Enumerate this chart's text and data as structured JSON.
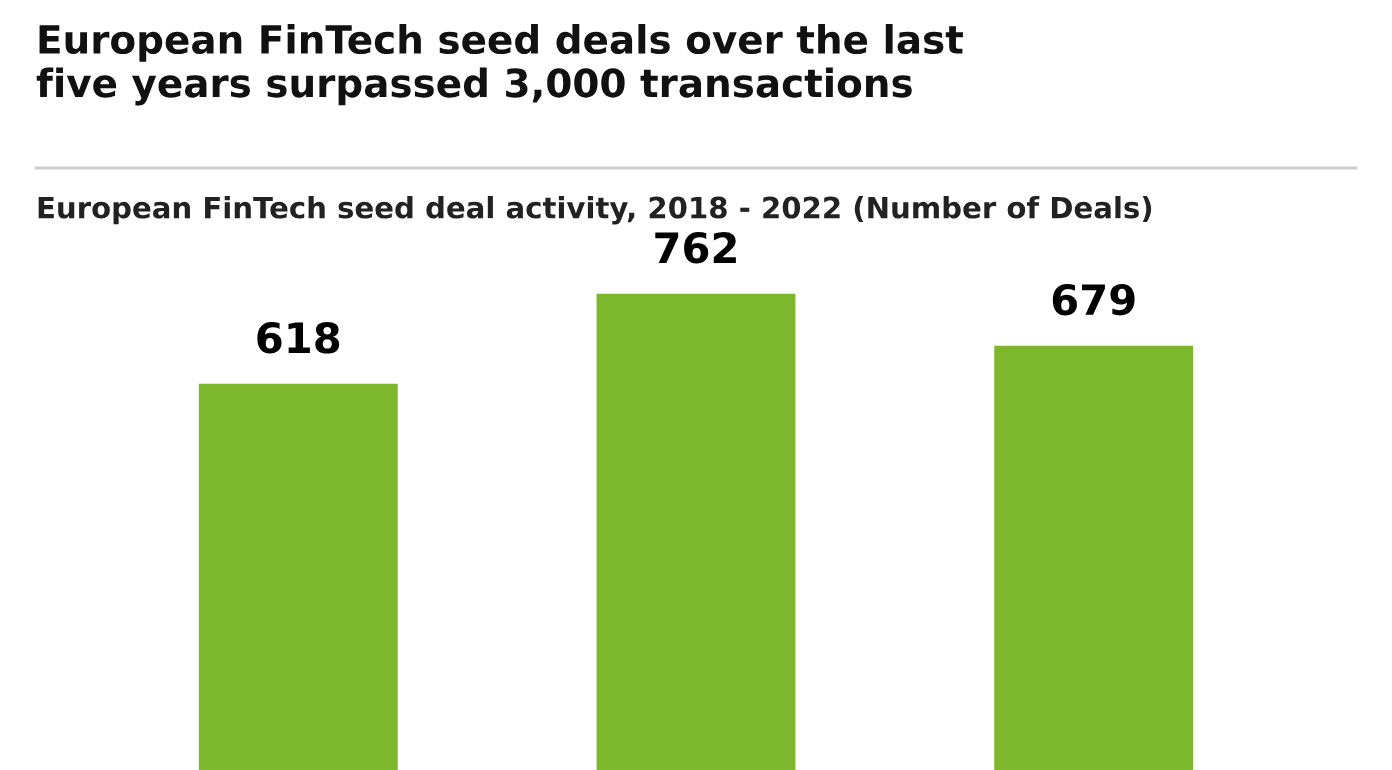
{
  "chart_data": {
    "type": "bar",
    "title": "European FinTech seed deals over the last\nfive years surpassed 3,000 transactions",
    "subtitle": "European FinTech seed deal activity, 2018 - 2022 (Number of Deals)",
    "categories": [
      null,
      null,
      null
    ],
    "values": [
      618,
      762,
      679
    ],
    "color": "#7cb72c",
    "data_labels": true,
    "grid": false,
    "legend": false
  }
}
